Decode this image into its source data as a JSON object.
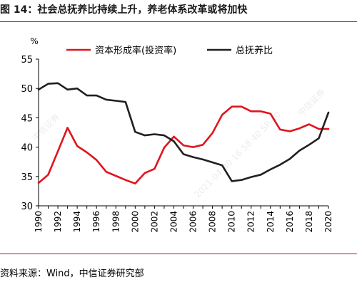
{
  "figure": {
    "title": "图 14：社会总抚养比持续上升，养老体系改革或将加快",
    "source": "资料来源：Wind，中信证券研究部"
  },
  "watermark": {
    "left": "中信证券",
    "right": "中信证券",
    "center": "2021-04-30 16:58:40 SP-40"
  },
  "colors": {
    "series1": "#e0141e",
    "series2": "#231f20",
    "rule": "#b3121f"
  },
  "chart_data": {
    "type": "line",
    "title": "",
    "xlabel": "",
    "ylabel": "%",
    "xlim": [
      1990,
      2020
    ],
    "ylim": [
      30,
      55
    ],
    "yticks": [
      30,
      35,
      40,
      45,
      50,
      55
    ],
    "xticks": [
      "1990",
      "1992",
      "1994",
      "1996",
      "1998",
      "2000",
      "2002",
      "2004",
      "2006",
      "2008",
      "2010",
      "2012",
      "2014",
      "2016",
      "2018",
      "2020"
    ],
    "grid": false,
    "legend_position": "top",
    "x": [
      1990,
      1991,
      1992,
      1993,
      1994,
      1995,
      1996,
      1997,
      1998,
      1999,
      2000,
      2001,
      2002,
      2003,
      2004,
      2005,
      2006,
      2007,
      2008,
      2009,
      2010,
      2011,
      2012,
      2013,
      2014,
      2015,
      2016,
      2017,
      2018,
      2019,
      2020
    ],
    "series": [
      {
        "name": "资本形成率(投资率)",
        "color": "#e0141e",
        "values": [
          33.9,
          35.3,
          39.3,
          43.3,
          40.2,
          39.1,
          37.8,
          35.8,
          35.1,
          34.4,
          33.8,
          35.6,
          36.3,
          39.9,
          41.8,
          40.3,
          40.0,
          40.4,
          42.4,
          45.5,
          46.9,
          46.9,
          46.1,
          46.1,
          45.7,
          43.0,
          42.7,
          43.2,
          43.9,
          43.1,
          43.1
        ]
      },
      {
        "name": "总抚养比",
        "color": "#231f20",
        "values": [
          49.8,
          50.8,
          50.9,
          49.8,
          50.0,
          48.8,
          48.8,
          48.1,
          47.9,
          47.7,
          42.6,
          42.0,
          42.2,
          42.0,
          41.0,
          38.8,
          38.3,
          37.9,
          37.4,
          36.9,
          34.2,
          34.4,
          34.9,
          35.3,
          36.2,
          37.0,
          38.0,
          39.4,
          40.4,
          41.5,
          45.9
        ]
      }
    ]
  }
}
